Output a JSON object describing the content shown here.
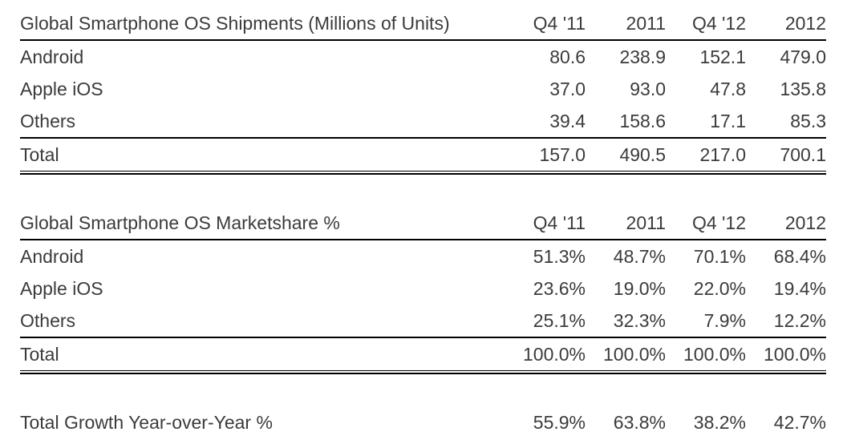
{
  "colors": {
    "text": "#3b3b3b",
    "rule": "#000000",
    "background": "#ffffff"
  },
  "chart_data": [
    {
      "type": "table",
      "title": "Global Smartphone OS Shipments (Millions of Units)",
      "columns": [
        "Q4 '11",
        "2011",
        "Q4 '12",
        "2012"
      ],
      "rows": [
        {
          "label": "Android",
          "values": [
            "80.6",
            "238.9",
            "152.1",
            "479.0"
          ]
        },
        {
          "label": "Apple iOS",
          "values": [
            "37.0",
            "93.0",
            "47.8",
            "135.8"
          ]
        },
        {
          "label": "Others",
          "values": [
            "39.4",
            "158.6",
            "17.1",
            "85.3"
          ]
        }
      ],
      "total_row": {
        "label": "Total",
        "values": [
          "157.0",
          "490.5",
          "217.0",
          "700.1"
        ]
      }
    },
    {
      "type": "table",
      "title": "Global Smartphone OS Marketshare %",
      "columns": [
        "Q4 '11",
        "2011",
        "Q4 '12",
        "2012"
      ],
      "rows": [
        {
          "label": "Android",
          "values": [
            "51.3%",
            "48.7%",
            "70.1%",
            "68.4%"
          ]
        },
        {
          "label": "Apple iOS",
          "values": [
            "23.6%",
            "19.0%",
            "22.0%",
            "19.4%"
          ]
        },
        {
          "label": "Others",
          "values": [
            "25.1%",
            "32.3%",
            "7.9%",
            "12.2%"
          ]
        }
      ],
      "total_row": {
        "label": "Total",
        "values": [
          "100.0%",
          "100.0%",
          "100.0%",
          "100.0%"
        ]
      }
    },
    {
      "type": "table",
      "title": "Total Growth Year-over-Year %",
      "columns": [
        "Q4 '11",
        "2011",
        "Q4 '12",
        "2012"
      ],
      "rows": [
        {
          "label": "Total Growth Year-over-Year %",
          "values": [
            "55.9%",
            "63.8%",
            "38.2%",
            "42.7%"
          ]
        }
      ]
    }
  ]
}
